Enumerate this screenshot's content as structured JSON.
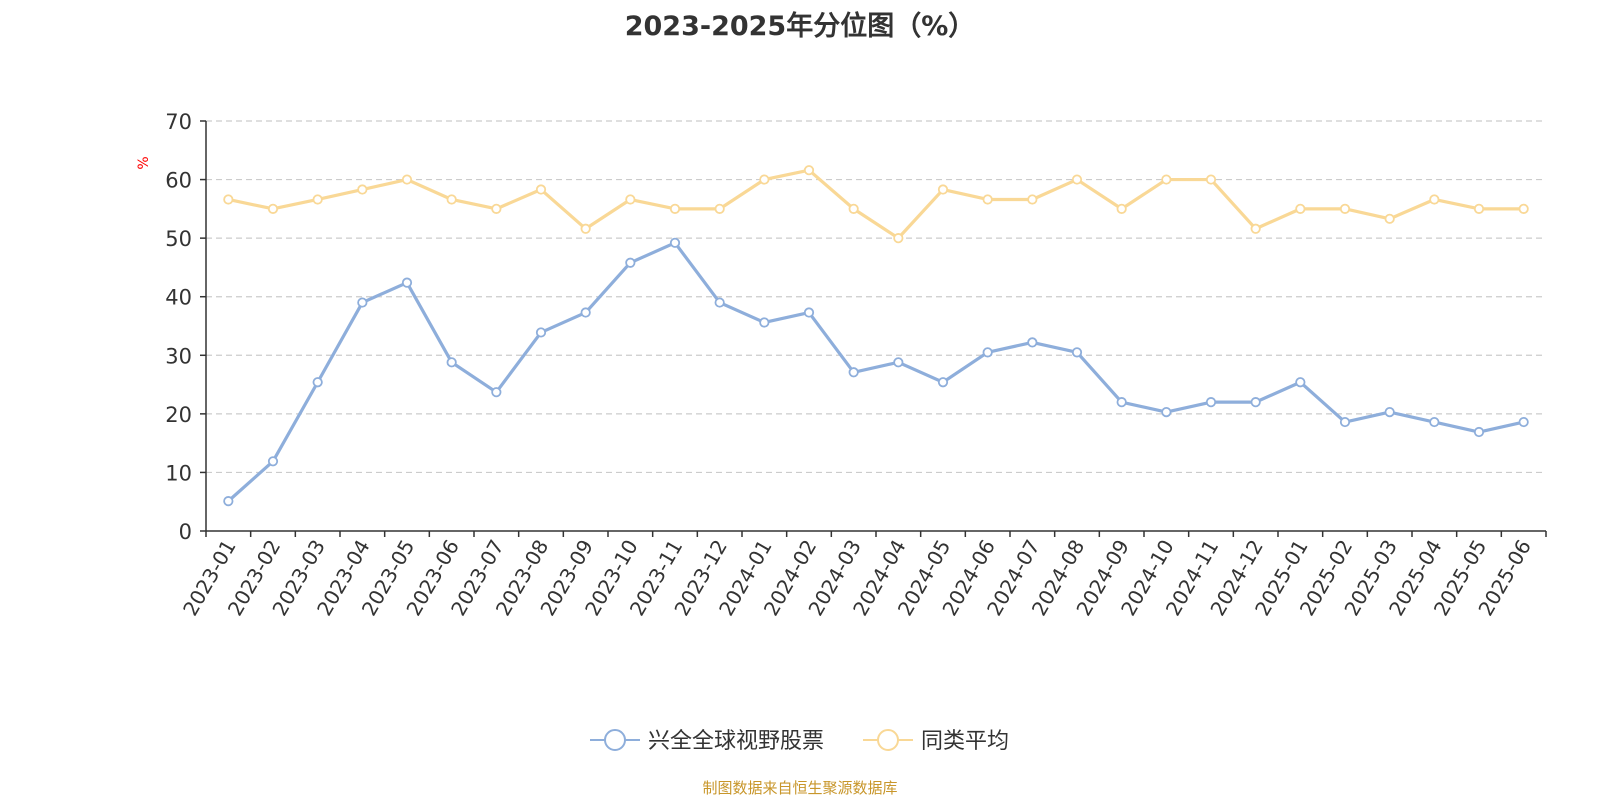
{
  "title": "2023-2025年分位图（%）",
  "source": "制图数据来自恒生聚源数据库",
  "colors": {
    "series1": "#8eaedb",
    "series2": "#f9d896",
    "axis": "#333333",
    "grid": "#cccccc",
    "unit": "#ff0000"
  },
  "chart_data": {
    "type": "line",
    "title": "2023-2025年分位图（%）",
    "ylabel": "%",
    "ylim": [
      0,
      70
    ],
    "yticks": [
      0,
      10,
      20,
      30,
      40,
      50,
      60,
      70
    ],
    "grid": true,
    "legend_position": "bottom",
    "categories": [
      "2023-01",
      "2023-02",
      "2023-03",
      "2023-04",
      "2023-05",
      "2023-06",
      "2023-07",
      "2023-08",
      "2023-09",
      "2023-10",
      "2023-11",
      "2023-12",
      "2024-01",
      "2024-02",
      "2024-03",
      "2024-04",
      "2024-05",
      "2024-06",
      "2024-07",
      "2024-08",
      "2024-09",
      "2024-10",
      "2024-11",
      "2024-12",
      "2025-01",
      "2025-02",
      "2025-03",
      "2025-04",
      "2025-05",
      "2025-06"
    ],
    "series": [
      {
        "name": "兴全全球视野股票",
        "values": [
          5.1,
          11.9,
          25.4,
          39.0,
          42.4,
          28.8,
          23.7,
          33.9,
          37.3,
          45.8,
          49.2,
          39.0,
          35.6,
          37.3,
          27.1,
          28.8,
          25.4,
          30.5,
          32.2,
          30.5,
          22.0,
          20.3,
          22.0,
          22.0,
          25.4,
          18.6,
          20.3,
          18.6,
          16.9,
          18.6
        ]
      },
      {
        "name": "同类平均",
        "values": [
          56.6,
          55.0,
          56.6,
          58.3,
          60.0,
          56.6,
          55.0,
          58.3,
          51.6,
          56.6,
          55.0,
          55.0,
          60.0,
          61.6,
          55.0,
          50.0,
          58.3,
          56.6,
          56.6,
          60.0,
          55.0,
          60.0,
          60.0,
          51.6,
          55.0,
          55.0,
          53.3,
          56.6,
          55.0,
          55.0
        ]
      }
    ]
  }
}
